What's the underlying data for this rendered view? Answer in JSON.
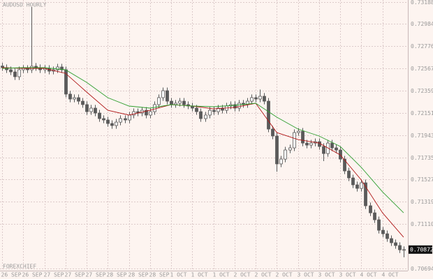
{
  "chart_data": {
    "type": "candlestick",
    "title": "AUDUSD HOURLY",
    "watermark": "FOREXCHIEF",
    "ylim": [
      0.70675,
      0.73208
    ],
    "yticks": [
      0.73188,
      0.72984,
      0.72776,
      0.72567,
      0.72359,
      0.72151,
      0.71943,
      0.71735,
      0.71527,
      0.71319,
      {
        "value": 0.7111,
        "label": "0.71110"
      },
      0.70694
    ],
    "xlim": [
      -0.5,
      96
    ],
    "xticks": [
      {
        "value": 0,
        "label": "26 SEP"
      },
      {
        "value": 5,
        "label": "26 SEP"
      },
      {
        "value": 10,
        "label": "27 SEP"
      },
      {
        "value": 15,
        "label": "27 SEP"
      },
      {
        "value": 20,
        "label": "27 SEP"
      },
      {
        "value": 25,
        "label": "28 SEP"
      },
      {
        "value": 30,
        "label": "28 SEP"
      },
      {
        "value": 35,
        "label": "28 SEP"
      },
      {
        "value": 40,
        "label": "1 OCT"
      },
      {
        "value": 45,
        "label": "1 OCT"
      },
      {
        "value": 50,
        "label": "1 OCT"
      },
      {
        "value": 55,
        "label": "2 OCT"
      },
      {
        "value": 60,
        "label": "2 OCT"
      },
      {
        "value": 65,
        "label": "2 OCT"
      },
      {
        "value": 70,
        "label": "3 OCT"
      },
      {
        "value": 75,
        "label": "3 OCT"
      },
      {
        "value": 80,
        "label": "3 OCT"
      },
      {
        "value": 85,
        "label": "4 OCT"
      },
      {
        "value": 90,
        "label": "4 OCT"
      }
    ],
    "grid": true,
    "last_price": 0.70872,
    "candle_color": "#5a5a5a",
    "open": [
      0.7259,
      0.72575,
      0.72555,
      0.72535,
      0.7249,
      0.72555,
      0.72568,
      0.72555,
      0.72588,
      0.72575,
      0.72555,
      0.72568,
      0.72542,
      0.72555,
      0.72581,
      0.72555,
      0.72327,
      0.72281,
      0.72294,
      0.72261,
      0.72229,
      0.72163,
      0.72196,
      0.7215,
      0.72098,
      0.72085,
      0.72052,
      0.72033,
      0.72065,
      0.72098,
      0.72085,
      0.72131,
      0.72163,
      0.7215,
      0.72176,
      0.72131,
      0.72163,
      0.72229,
      0.72294,
      0.72359,
      0.72261,
      0.72229,
      0.72242,
      0.72261,
      0.72229,
      0.72216,
      0.72196,
      0.72163,
      0.72098,
      0.72131,
      0.72176,
      0.72163,
      0.72196,
      0.72176,
      0.72216,
      0.72229,
      0.72196,
      0.72242,
      0.72229,
      0.72261,
      0.72294,
      0.72281,
      0.72307,
      0.72261,
      0.72,
      0.71935,
      0.71674,
      0.71719,
      0.71804,
      0.71824,
      0.71967,
      0.7198,
      0.71869,
      0.7185,
      0.71869,
      0.71882,
      0.71837,
      0.71771,
      0.71869,
      0.71824,
      0.71804,
      0.71719,
      0.71608,
      0.71543,
      0.71478,
      0.71445,
      0.71497,
      0.71282,
      0.71216,
      0.71151,
      0.71053,
      0.7102,
      0.70975,
      0.70936,
      0.7091,
      0.7087
    ],
    "high": [
      0.7262,
      0.72605,
      0.72585,
      0.72565,
      0.72585,
      0.72598,
      0.72598,
      0.73143,
      0.72618,
      0.72605,
      0.72598,
      0.72598,
      0.72585,
      0.72611,
      0.72611,
      0.72585,
      0.72357,
      0.72324,
      0.72324,
      0.72291,
      0.72259,
      0.72226,
      0.72226,
      0.7218,
      0.72128,
      0.72115,
      0.72082,
      0.72095,
      0.72128,
      0.72128,
      0.72161,
      0.72193,
      0.72193,
      0.72206,
      0.72206,
      0.72193,
      0.72259,
      0.72324,
      0.72389,
      0.72389,
      0.72291,
      0.72272,
      0.72291,
      0.72291,
      0.72259,
      0.72246,
      0.72226,
      0.72193,
      0.72161,
      0.72206,
      0.72206,
      0.72226,
      0.72226,
      0.72246,
      0.72259,
      0.72259,
      0.72272,
      0.72272,
      0.72291,
      0.72324,
      0.72324,
      0.7237,
      0.72337,
      0.72291,
      0.7203,
      0.71965,
      0.71749,
      0.71834,
      0.71854,
      0.71997,
      0.7201,
      0.7201,
      0.71899,
      0.71899,
      0.71912,
      0.71912,
      0.71867,
      0.71899,
      0.71899,
      0.71854,
      0.71834,
      0.71749,
      0.71638,
      0.71573,
      0.71508,
      0.71527,
      0.71527,
      0.71312,
      0.71246,
      0.71181,
      0.71083,
      0.7105,
      0.71005,
      0.70966,
      0.7094,
      0.70902
    ],
    "low": [
      0.72545,
      0.72525,
      0.72505,
      0.7246,
      0.7246,
      0.72525,
      0.72525,
      0.72525,
      0.72545,
      0.72525,
      0.72525,
      0.72512,
      0.72512,
      0.72525,
      0.72525,
      0.72297,
      0.72251,
      0.72251,
      0.72231,
      0.72199,
      0.72133,
      0.72133,
      0.7212,
      0.72068,
      0.72055,
      0.72022,
      0.72003,
      0.72003,
      0.72035,
      0.72055,
      0.72055,
      0.72101,
      0.7212,
      0.7212,
      0.72101,
      0.72101,
      0.72133,
      0.72199,
      0.72264,
      0.72231,
      0.72199,
      0.72199,
      0.72212,
      0.72199,
      0.72186,
      0.72166,
      0.72133,
      0.72068,
      0.72068,
      0.72101,
      0.72133,
      0.72133,
      0.72146,
      0.72146,
      0.72186,
      0.72166,
      0.72166,
      0.72199,
      0.72199,
      0.72231,
      0.72251,
      0.72251,
      0.72231,
      0.7197,
      0.71905,
      0.716,
      0.71644,
      0.71689,
      0.71774,
      0.71794,
      0.71937,
      0.71839,
      0.7182,
      0.7182,
      0.71839,
      0.71807,
      0.717,
      0.71741,
      0.71794,
      0.71774,
      0.71689,
      0.71578,
      0.71513,
      0.71448,
      0.71415,
      0.71415,
      0.71252,
      0.71186,
      0.71121,
      0.71023,
      0.7099,
      0.70945,
      0.70906,
      0.7088,
      0.7084,
      0.708
    ],
    "close": [
      0.72575,
      0.72555,
      0.72535,
      0.7249,
      0.72555,
      0.72568,
      0.72555,
      0.72588,
      0.72575,
      0.72555,
      0.72568,
      0.72542,
      0.72555,
      0.72581,
      0.72555,
      0.72327,
      0.72281,
      0.72294,
      0.72261,
      0.72229,
      0.72163,
      0.72196,
      0.7215,
      0.72098,
      0.72085,
      0.72052,
      0.72033,
      0.72065,
      0.72098,
      0.72085,
      0.72131,
      0.72163,
      0.7215,
      0.72176,
      0.72131,
      0.72163,
      0.72229,
      0.72294,
      0.72359,
      0.72261,
      0.72229,
      0.72242,
      0.72261,
      0.72229,
      0.72216,
      0.72196,
      0.72163,
      0.72098,
      0.72131,
      0.72176,
      0.72163,
      0.72196,
      0.72176,
      0.72216,
      0.72229,
      0.72196,
      0.72242,
      0.72229,
      0.72261,
      0.72294,
      0.72281,
      0.72307,
      0.72261,
      0.72,
      0.71935,
      0.71674,
      0.71719,
      0.71804,
      0.71824,
      0.71967,
      0.7198,
      0.71869,
      0.7185,
      0.71869,
      0.71882,
      0.71837,
      0.71771,
      0.71869,
      0.71824,
      0.71804,
      0.71719,
      0.71608,
      0.71543,
      0.71478,
      0.71445,
      0.71497,
      0.71282,
      0.71216,
      0.71151,
      0.71053,
      0.7102,
      0.70975,
      0.70936,
      0.7091,
      0.7087,
      0.70872
    ],
    "series": [
      {
        "color": "#b01818",
        "x": [
          0,
          5,
          10,
          15,
          20,
          25,
          30,
          35,
          40,
          45,
          50,
          55,
          60,
          65,
          70,
          75,
          80,
          85,
          90,
          95
        ],
        "values": [
          0.72575,
          0.72568,
          0.72568,
          0.72522,
          0.72346,
          0.72176,
          0.72131,
          0.72176,
          0.72229,
          0.72216,
          0.72189,
          0.72202,
          0.72242,
          0.71967,
          0.71902,
          0.71869,
          0.71758,
          0.71523,
          0.71216,
          0.70988
        ]
      },
      {
        "color": "#2e9e2e",
        "x": [
          0,
          5,
          10,
          15,
          20,
          25,
          30,
          35,
          40,
          45,
          50,
          55,
          60,
          65,
          70,
          75,
          80,
          85,
          90,
          95
        ],
        "values": [
          0.72568,
          0.72575,
          0.72575,
          0.72555,
          0.72437,
          0.72294,
          0.72216,
          0.72196,
          0.72229,
          0.72216,
          0.72209,
          0.72222,
          0.72242,
          0.72111,
          0.72,
          0.71935,
          0.71837,
          0.71641,
          0.71412,
          0.71216
        ]
      }
    ]
  }
}
